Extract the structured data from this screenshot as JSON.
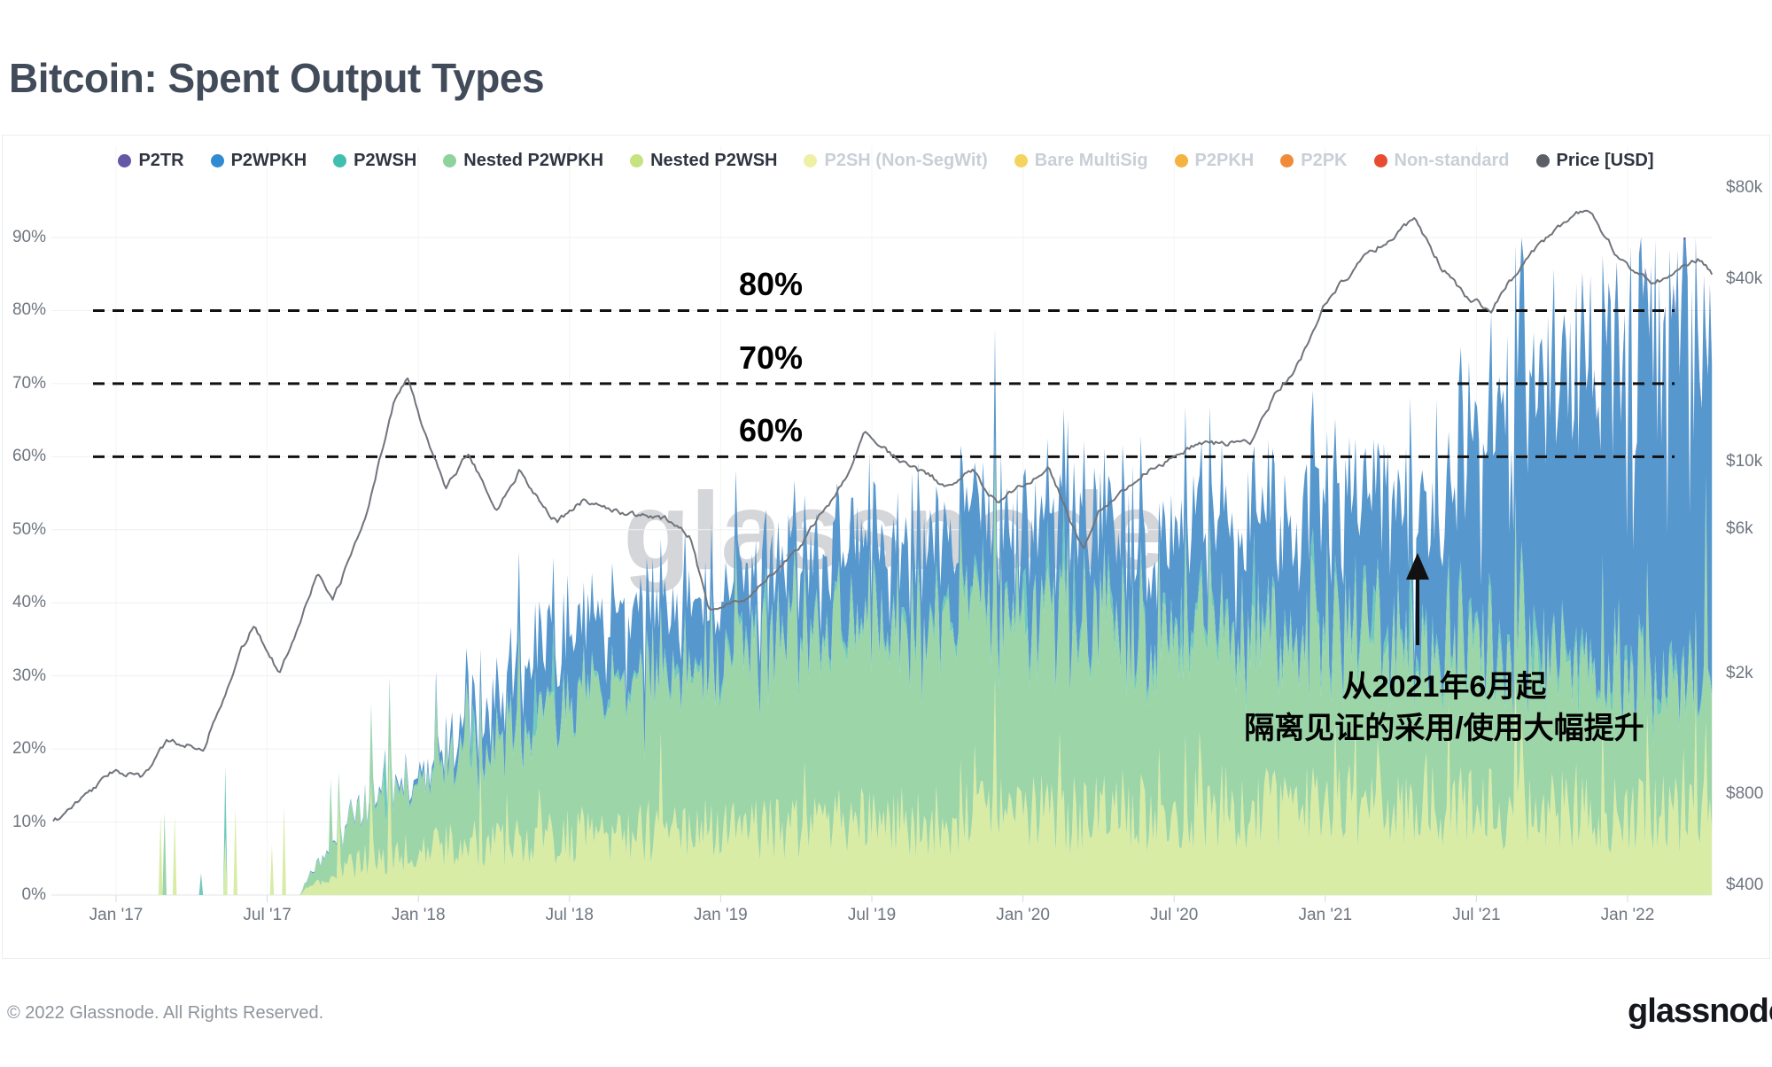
{
  "page": {
    "title": "Bitcoin: Spent Output Types",
    "watermark": "glassnode",
    "footer_left": "© 2022 Glassnode. All Rights Reserved.",
    "footer_logo": "glassnode"
  },
  "legend": {
    "items": [
      {
        "label": "P2TR",
        "color": "#6457a6",
        "active": true
      },
      {
        "label": "P2WPKH",
        "color": "#318bd1",
        "active": true
      },
      {
        "label": "P2WSH",
        "color": "#3fbfae",
        "active": true
      },
      {
        "label": "Nested P2WPKH",
        "color": "#8fd39c",
        "active": true
      },
      {
        "label": "Nested P2WSH",
        "color": "#c6e381",
        "active": true
      },
      {
        "label": "P2SH (Non-SegWit)",
        "color": "#eef0a4",
        "active": false
      },
      {
        "label": "Bare MultiSig",
        "color": "#f4d45e",
        "active": false
      },
      {
        "label": "P2PKH",
        "color": "#f3b33e",
        "active": false
      },
      {
        "label": "P2PK",
        "color": "#f08c39",
        "active": false
      },
      {
        "label": "Non-standard",
        "color": "#e74c30",
        "active": false
      },
      {
        "label": "Price [USD]",
        "color": "#5c6066",
        "active": true
      }
    ]
  },
  "axes": {
    "left_percent_ticks": [
      0,
      10,
      20,
      30,
      40,
      50,
      60,
      70,
      80,
      90
    ],
    "right_price_ticks": [
      {
        "value": 400,
        "label": "$400"
      },
      {
        "value": 800,
        "label": "$800"
      },
      {
        "value": 2000,
        "label": "$2k"
      },
      {
        "value": 6000,
        "label": "$6k"
      },
      {
        "value": 10000,
        "label": "$10k"
      },
      {
        "value": 40000,
        "label": "$40k"
      },
      {
        "value": 80000,
        "label": "$80k"
      }
    ],
    "x_ticks": [
      {
        "month": 0,
        "label": "Jan '17"
      },
      {
        "month": 6,
        "label": "Jul '17"
      },
      {
        "month": 12,
        "label": "Jan '18"
      },
      {
        "month": 18,
        "label": "Jul '18"
      },
      {
        "month": 24,
        "label": "Jan '19"
      },
      {
        "month": 30,
        "label": "Jul '19"
      },
      {
        "month": 36,
        "label": "Jan '20"
      },
      {
        "month": 42,
        "label": "Jul '20"
      },
      {
        "month": 48,
        "label": "Jan '21"
      },
      {
        "month": 54,
        "label": "Jul '21"
      },
      {
        "month": 60,
        "label": "Jan '22"
      }
    ]
  },
  "annotations": {
    "thresholds": [
      {
        "text": "80%",
        "percent": 80
      },
      {
        "text": "70%",
        "percent": 70
      },
      {
        "text": "60%",
        "percent": 60
      }
    ],
    "note_line1": "从2021年6月起",
    "note_line2": "隔离见证的采用/使用大幅提升",
    "arrow": {
      "x": 1600,
      "y_tail": 728,
      "y_head": 624
    }
  },
  "chart_data": {
    "type": "area",
    "stacked": true,
    "title": "Bitcoin: Spent Output Types",
    "x_axis": {
      "unit": "months_since_jan_2017",
      "range": [
        -2.5,
        63.35
      ]
    },
    "y_left": {
      "format": "percent",
      "ticks": [
        0,
        10,
        20,
        30,
        40,
        50,
        60,
        70,
        80,
        90
      ],
      "range": [
        0,
        100
      ]
    },
    "y_right": {
      "label": "Price [USD]",
      "scale": "log",
      "ticks": [
        400,
        800,
        2000,
        6000,
        10000,
        40000,
        80000
      ]
    },
    "grid": true,
    "legend_position": "top-center",
    "series_order_bottom_to_top": [
      "Nested P2WSH",
      "Nested P2WPKH",
      "P2WSH",
      "P2WPKH",
      "P2TR"
    ],
    "series_colors": {
      "Nested P2WSH": "#d9eca6",
      "Nested P2WPKH": "#9cd5a8",
      "P2WSH": "#6fcabb",
      "P2WPKH": "#5697cd",
      "P2TR": "#6457a6",
      "Price [USD]": "#70747b"
    },
    "stack_anchors_percent": {
      "t": [
        7.3,
        7.8,
        9,
        10,
        11,
        12,
        13,
        14,
        15,
        16,
        18,
        20,
        22,
        24,
        26,
        28,
        30,
        32,
        34,
        36,
        38,
        40,
        42,
        44,
        46,
        48,
        50,
        52,
        53,
        54,
        55,
        56,
        57,
        58,
        59,
        60,
        61.5,
        63.4
      ],
      "nested_p2wsh": [
        0,
        1.5,
        3.5,
        5,
        5.5,
        6,
        6.5,
        7,
        7,
        7.5,
        8,
        8.5,
        9,
        9,
        9,
        9.5,
        10,
        10,
        10.5,
        11,
        11,
        11.5,
        12,
        12,
        12,
        12,
        12,
        12,
        12,
        12,
        12,
        12,
        11.5,
        11.5,
        11,
        11,
        11,
        10.5
      ],
      "nested_p2wpkh": [
        0,
        2,
        5,
        8,
        9,
        10,
        11,
        12,
        13,
        14,
        18,
        20,
        21,
        24,
        25,
        26,
        26,
        27,
        27,
        27,
        27,
        25,
        24,
        24,
        23,
        23,
        22,
        22,
        22,
        22,
        21,
        21,
        20,
        20,
        19,
        18,
        17,
        17
      ],
      "p2wsh": [
        0,
        0.1,
        0.2,
        0.3,
        0.3,
        0.4,
        0.5,
        0.5,
        0.6,
        0.7,
        0.8,
        0.8,
        0.9,
        1,
        1,
        1,
        1,
        1.2,
        1.2,
        1.3,
        1.3,
        1.4,
        1.4,
        1.5,
        1.5,
        1.5,
        1.5,
        1.5,
        1.5,
        1.5,
        1.5,
        1.5,
        1.5,
        1.5,
        1.5,
        1.5,
        1.5,
        1.5
      ],
      "p2wpkh": [
        0,
        0.1,
        0.2,
        0.3,
        0.5,
        0.8,
        1.5,
        4,
        6,
        8,
        9,
        9,
        9,
        8,
        9,
        10,
        11,
        11,
        12,
        12,
        13,
        12,
        13,
        14,
        15,
        16,
        17,
        18,
        22,
        28,
        32,
        36,
        38,
        40,
        42,
        45,
        47,
        48
      ],
      "p2tr": [
        0,
        0,
        0,
        0,
        0,
        0,
        0,
        0,
        0,
        0,
        0,
        0,
        0,
        0,
        0,
        0,
        0,
        0,
        0,
        0,
        0,
        0,
        0,
        0,
        0,
        0,
        0,
        0,
        0,
        0,
        0,
        0,
        0,
        0.2,
        0.2,
        0.3,
        0.3,
        0.4
      ]
    },
    "price_anchors_usd": {
      "t": [
        -2.5,
        0,
        1,
        2,
        3.5,
        5,
        5.5,
        6.5,
        8,
        8.6,
        10,
        11,
        11.55,
        12.2,
        13.1,
        14,
        15.1,
        16,
        17.5,
        18.5,
        20,
        22,
        22.8,
        23.5,
        25,
        27,
        29,
        29.7,
        31,
        33,
        34,
        35,
        37,
        38.4,
        39,
        41,
        43,
        45,
        46,
        47,
        48,
        48.6,
        49.7,
        51,
        51.6,
        52.6,
        53.5,
        54.6,
        56,
        57,
        58,
        58.5,
        59.6,
        61,
        62,
        62.8,
        63.4
      ],
      "usd": [
        640,
        970,
        900,
        1190,
        1150,
        2400,
        2900,
        2000,
        4300,
        3400,
        7000,
        15500,
        19200,
        13000,
        8200,
        10800,
        6900,
        9300,
        6300,
        7400,
        6800,
        6400,
        5600,
        3300,
        3500,
        5100,
        8800,
        12800,
        10200,
        8300,
        9300,
        7200,
        9700,
        5000,
        7000,
        9400,
        11500,
        11500,
        16500,
        21500,
        33500,
        38500,
        48500,
        58000,
        63000,
        44000,
        35500,
        31500,
        47500,
        56000,
        66000,
        68500,
        47500,
        38500,
        42500,
        46500,
        41800
      ]
    }
  },
  "colors": {
    "dashed_line": "#111111",
    "grid_line": "#eef0f2",
    "axis_text": "#6e7680",
    "title_text": "#414b5a"
  }
}
